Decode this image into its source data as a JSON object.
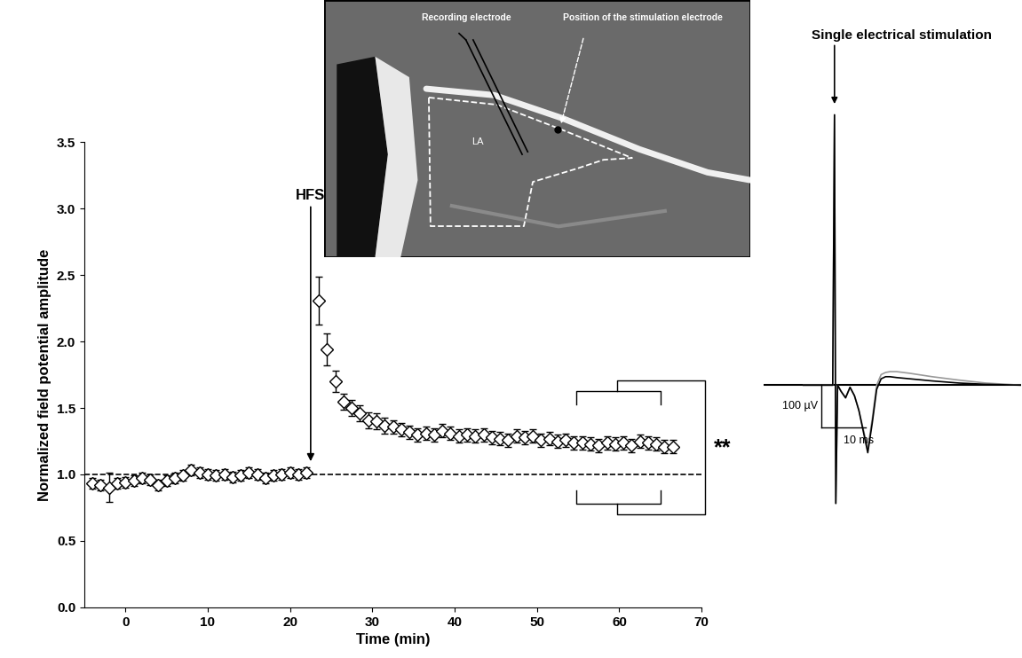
{
  "chart_data": [
    {
      "type": "scatter",
      "x_label": "Time (min)",
      "y_label": "Normalized field potential amplitude",
      "xlim": [
        -5,
        70
      ],
      "ylim": [
        0,
        3.5
      ],
      "xticks": [
        0,
        10,
        20,
        30,
        40,
        50,
        60,
        70
      ],
      "yticks": [
        {
          "value": 0,
          "label": "0.0"
        },
        {
          "value": 0.5,
          "label": "0.5"
        },
        {
          "value": 1,
          "label": "1.0"
        },
        {
          "value": 1.5,
          "label": "1.5"
        },
        {
          "value": 2,
          "label": "2.0"
        },
        {
          "value": 2.5,
          "label": "2.5"
        },
        {
          "value": 3,
          "label": "3.0"
        },
        {
          "value": 3.5,
          "label": "3.5"
        }
      ],
      "baseline": 1.0,
      "annotations": [
        {
          "text": "HFS",
          "x": 22.5
        },
        {
          "text": "**"
        }
      ],
      "x": [
        -4,
        -3,
        -2,
        -1,
        0,
        1,
        2,
        3,
        4,
        5,
        6,
        7,
        8,
        9,
        10,
        11,
        12,
        13,
        14,
        15,
        16,
        17,
        18,
        19,
        20,
        21,
        22,
        23.5,
        24.5,
        25.5,
        26.5,
        27.5,
        28.5,
        29.5,
        30.5,
        31.5,
        32.5,
        33.5,
        34.5,
        35.5,
        36.5,
        37.5,
        38.5,
        39.5,
        40.5,
        41.5,
        42.5,
        43.5,
        44.5,
        45.5,
        46.5,
        47.5,
        48.5,
        49.5,
        50.5,
        51.5,
        52.5,
        53.5,
        54.5,
        55.5,
        56.5,
        57.5,
        58.5,
        59.5,
        60.5,
        61.5,
        62.5,
        63.5,
        64.5,
        65.5,
        66.5
      ],
      "series": [
        {
          "color": "#000000",
          "marker": "D",
          "values": [
            0.93,
            0.92,
            0.9,
            0.93,
            0.94,
            0.95,
            0.97,
            0.96,
            0.92,
            0.95,
            0.97,
            0.99,
            1.03,
            1.01,
            1.0,
            0.99,
            1.0,
            0.98,
            0.99,
            1.01,
            1.0,
            0.97,
            0.99,
            1.0,
            1.01,
            1.0,
            1.01,
            2.31,
            1.94,
            1.7,
            1.55,
            1.5,
            1.46,
            1.41,
            1.4,
            1.37,
            1.36,
            1.34,
            1.32,
            1.3,
            1.31,
            1.3,
            1.33,
            1.31,
            1.29,
            1.3,
            1.29,
            1.3,
            1.28,
            1.27,
            1.26,
            1.29,
            1.28,
            1.29,
            1.26,
            1.27,
            1.25,
            1.26,
            1.24,
            1.24,
            1.23,
            1.22,
            1.24,
            1.23,
            1.24,
            1.22,
            1.25,
            1.24,
            1.23,
            1.21,
            1.21
          ],
          "errors": [
            0.04,
            0.04,
            0.11,
            0.04,
            0.04,
            0.04,
            0.04,
            0.04,
            0.04,
            0.04,
            0.04,
            0.04,
            0.04,
            0.04,
            0.04,
            0.04,
            0.04,
            0.04,
            0.04,
            0.04,
            0.04,
            0.04,
            0.04,
            0.04,
            0.04,
            0.04,
            0.04,
            0.18,
            0.12,
            0.08,
            0.06,
            0.06,
            0.06,
            0.06,
            0.06,
            0.06,
            0.05,
            0.05,
            0.05,
            0.05,
            0.05,
            0.05,
            0.05,
            0.05,
            0.05,
            0.05,
            0.05,
            0.05,
            0.05,
            0.05,
            0.05,
            0.05,
            0.05,
            0.05,
            0.05,
            0.05,
            0.05,
            0.05,
            0.05,
            0.05,
            0.05,
            0.05,
            0.05,
            0.05,
            0.05,
            0.05,
            0.05,
            0.05,
            0.05,
            0.05,
            0.05
          ]
        }
      ]
    },
    {
      "type": "line",
      "title": "Single electrical stimulation",
      "xlim": [
        0,
        58
      ],
      "ylim": [
        -350,
        700
      ],
      "tick_labels": false,
      "baseline": 0,
      "stimulus_time": 16,
      "scale_bar": {
        "y_value": 100,
        "y_label": "100 µV",
        "x_value": 10,
        "x_label": "10 ms"
      },
      "x": [
        9,
        15.6,
        16.0,
        16.3,
        16.7,
        17.5,
        18.5,
        19.5,
        20.5,
        21.5,
        22.5,
        23.5,
        24.5,
        25.5,
        26.5,
        27.5,
        28.5,
        30,
        33,
        38,
        44,
        50,
        58
      ],
      "series": [
        {
          "color": "#000000",
          "values": [
            0,
            0,
            640,
            -280,
            0,
            -15,
            -30,
            -5,
            -25,
            -60,
            -110,
            -160,
            -90,
            -10,
            15,
            20,
            20,
            18,
            15,
            10,
            5,
            2,
            0
          ]
        },
        {
          "color": "#999999",
          "values": [
            0,
            0,
            640,
            -280,
            0,
            -15,
            -30,
            -5,
            -25,
            -60,
            -105,
            -150,
            -80,
            0,
            25,
            30,
            32,
            32,
            28,
            20,
            12,
            5,
            0
          ]
        }
      ]
    }
  ],
  "inset_image": {
    "labels": {
      "recording": "Recording electrode",
      "stimulation": "Position of the stimulation electrode",
      "region": "LA"
    }
  }
}
